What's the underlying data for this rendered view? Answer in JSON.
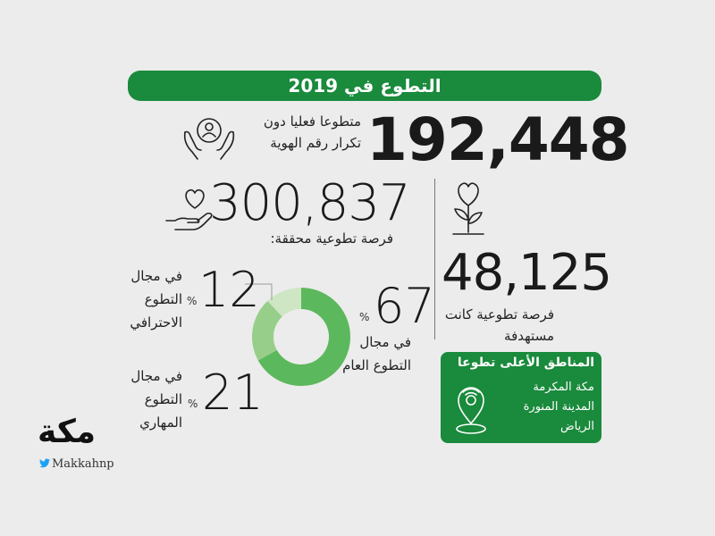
{
  "title": "التطوع في 2019",
  "stats": {
    "unique_volunteers": {
      "value": "192,448",
      "label": "متطوعا فعليا دون تكرار رقم الهوية"
    },
    "achieved_opportunities": {
      "value": "300,837",
      "label": "فرصة تطوعية محققة:"
    },
    "targeted_opportunities": {
      "value": "48,125",
      "label": "فرصة تطوعية كانت مستهدفة"
    }
  },
  "percent_sign": "%",
  "chart_data": {
    "type": "pie",
    "donut": true,
    "categories": [
      "في مجال التطوع العام",
      "في مجال التطوع المهاري",
      "في مجال التطوع الاحترافي"
    ],
    "values": [
      67,
      21,
      12
    ],
    "value_labels": [
      "67",
      "21",
      "12"
    ],
    "colors": [
      "#5cb85c",
      "#97cf8a",
      "#cfe6c4"
    ]
  },
  "regions": {
    "title": "المناطق الأعلى تطوعا",
    "items": [
      "مكة المكرمة",
      "المدينة المنورة",
      "الرياض"
    ],
    "icon": "location-pin-icon"
  },
  "icons": {
    "unique": "hands-holding-person-icon",
    "achieved": "hand-holding-heart-icon",
    "targeted": "heart-plant-icon"
  },
  "colors": {
    "brand": "#1a8a3c",
    "background": "#ececec"
  },
  "logo": {
    "text": "مكة",
    "handle": "Makkahnp"
  }
}
